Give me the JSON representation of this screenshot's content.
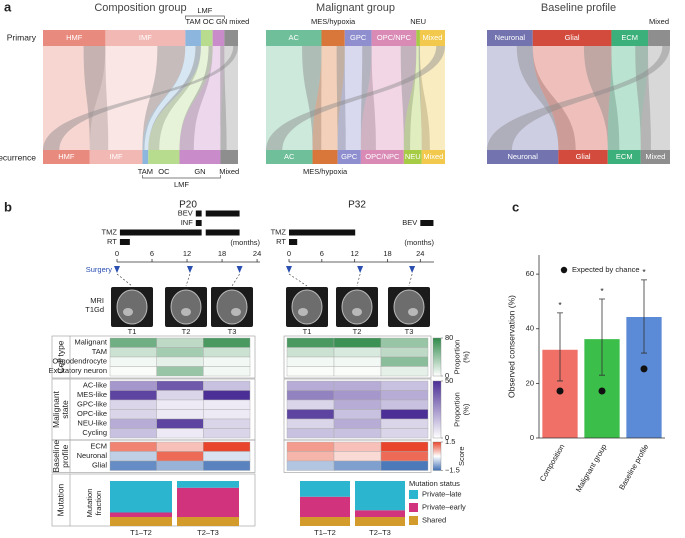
{
  "panel_a": {
    "label": "a"
  },
  "sankey": {
    "row_labels": {
      "primary": "Primary",
      "recurrence": "Recurrence"
    },
    "panels": [
      {
        "title": "Composition group",
        "primary": [
          {
            "name": "HMF",
            "color": "#e98a7e",
            "value": 32
          },
          {
            "name": "IMF",
            "color": "#f2b8b4",
            "value": 41
          },
          {
            "group": "LMF",
            "segments": [
              {
                "name": "TAM",
                "color": "#8db6de",
                "value": 8
              },
              {
                "name": "OC",
                "color": "#b7dc8e",
                "value": 6
              },
              {
                "name": "GN",
                "color": "#c98bc9",
                "value": 6
              }
            ]
          },
          {
            "name": "mixed",
            "color": "#8e8e8e",
            "value": 7
          }
        ],
        "recurrence": [
          {
            "name": "HMF",
            "color": "#e98a7e",
            "value": 24
          },
          {
            "name": "IMF",
            "color": "#f2b8b4",
            "value": 27
          },
          {
            "group": "LMF",
            "segments": [
              {
                "name": "TAM",
                "color": "#8db6de",
                "value": 3
              },
              {
                "name": "OC",
                "color": "#b7dc8e",
                "value": 16
              },
              {
                "name": "GN",
                "color": "#c98bc9",
                "value": 21
              }
            ]
          },
          {
            "name": "Mixed",
            "color": "#8e8e8e",
            "value": 9
          }
        ]
      },
      {
        "title": "Malignant group",
        "primary": [
          {
            "name": "AC",
            "color": "#6fc09a",
            "value": 31
          },
          {
            "name": "MES/hypoxia",
            "color": "#d9773a",
            "value": 13
          },
          {
            "name": "GPC",
            "color": "#8f8fd0",
            "value": 15
          },
          {
            "name": "OPC/NPC",
            "color": "#d98ab5",
            "value": 25
          },
          {
            "name": "NEU",
            "color": "#a6cc46",
            "value": 2
          },
          {
            "name": "Mixed",
            "color": "#f2c94c",
            "value": 14
          }
        ],
        "recurrence": [
          {
            "name": "AC",
            "color": "#6fc09a",
            "value": 26
          },
          {
            "name": "MES/hypoxia",
            "color": "#d9773a",
            "value": 14
          },
          {
            "name": "GPC",
            "color": "#8f8fd0",
            "value": 13
          },
          {
            "name": "OPC/NPC",
            "color": "#d98ab5",
            "value": 24
          },
          {
            "name": "NEU",
            "color": "#a6cc46",
            "value": 10
          },
          {
            "name": "Mixed",
            "color": "#f2c94c",
            "value": 13
          }
        ]
      },
      {
        "title": "Baseline profile",
        "primary": [
          {
            "name": "Neuronal",
            "color": "#7373b0",
            "value": 25
          },
          {
            "name": "Glial",
            "color": "#d24b3c",
            "value": 43
          },
          {
            "name": "ECM",
            "color": "#3cb07a",
            "value": 20
          },
          {
            "name": "Mixed",
            "color": "#8e8e8e",
            "value": 12
          }
        ],
        "recurrence": [
          {
            "name": "Neuronal",
            "color": "#7373b0",
            "value": 39
          },
          {
            "name": "Glial",
            "color": "#d24b3c",
            "value": 27
          },
          {
            "name": "ECM",
            "color": "#3cb07a",
            "value": 18
          },
          {
            "name": "Mixed",
            "color": "#8e8e8e",
            "value": 16
          }
        ]
      }
    ]
  },
  "panel_b": {
    "label": "b",
    "timeline": {
      "ticks": [
        0,
        6,
        12,
        18,
        24
      ],
      "unit": "(months)",
      "surgery_label": "Surgery"
    },
    "mri_label": [
      "MRI",
      "T1Gd"
    ],
    "timepoints": [
      "T1",
      "T2",
      "T3"
    ],
    "heatmap_sections": [
      {
        "title": [
          "Cell type"
        ],
        "scale": {
          "title": [
            "Proportion",
            "(%)"
          ],
          "lim": [
            0,
            80
          ],
          "ticks": [
            0,
            80
          ],
          "colors": [
            "#ffffff",
            "#2f8a4a"
          ]
        },
        "rows": [
          "Malignant",
          "TAM",
          "Oligodendrocyte",
          "Excitatory neuron"
        ]
      },
      {
        "title": [
          "Malignant",
          "state"
        ],
        "scale": {
          "title": [
            "Proportion",
            "(%)"
          ],
          "lim": [
            0,
            50
          ],
          "ticks": [
            0,
            50
          ],
          "colors": [
            "#ffffff",
            "#4b2f96"
          ]
        },
        "rows": [
          "AC-like",
          "MES-like",
          "GPC-like",
          "OPC-like",
          "NEU-like",
          "Cycling"
        ]
      },
      {
        "title": [
          "Baseline",
          "profile"
        ],
        "scale": {
          "title": [
            "Score"
          ],
          "lim": [
            -1.5,
            1.5
          ],
          "ticks": [
            {
              "value": -1.5,
              "label": "−1.5"
            },
            1.5
          ],
          "colors": [
            "#3f6fb5",
            "#ffffff",
            "#e8452c"
          ]
        },
        "rows": [
          "ECM",
          "Neuronal",
          "Glial"
        ]
      }
    ],
    "mutation": {
      "title": [
        "Mutation"
      ],
      "axis_label": [
        "Mutation",
        "fraction"
      ],
      "legend_title": "Mutation status",
      "series": [
        {
          "name": "Private–late",
          "color": "#2bb5cf"
        },
        {
          "name": "Private–early",
          "color": "#d1337c"
        },
        {
          "name": "Shared",
          "color": "#d39b2c"
        }
      ]
    },
    "patients": [
      {
        "name": "P20",
        "xlim": [
          0,
          24.5
        ],
        "treatments": [
          {
            "name": "BEV",
            "intervals": [
              [
                13.5,
                14.5
              ],
              [
                15.2,
                21
              ]
            ]
          },
          {
            "name": "INF",
            "intervals": [
              [
                13.5,
                14.5
              ]
            ]
          },
          {
            "name": "TMZ",
            "intervals": [
              [
                0.5,
                13.6
              ],
              [
                13.5,
                14.5
              ],
              [
                15.2,
                21
              ]
            ]
          },
          {
            "name": "RT",
            "intervals": [
              [
                0.5,
                2.2
              ]
            ]
          }
        ],
        "surgeries": [
          0,
          12.5,
          21
        ],
        "heatmaps": [
          [
            [
              55,
              25,
              70
            ],
            [
              20,
              35,
              20
            ],
            [
              5,
              10,
              5
            ],
            [
              2,
              40,
              5
            ]
          ],
          [
            [
              25,
              40,
              15
            ],
            [
              45,
              10,
              50
            ],
            [
              10,
              5,
              5
            ],
            [
              10,
              5,
              5
            ],
            [
              20,
              45,
              10
            ],
            [
              15,
              5,
              10
            ]
          ],
          [
            [
              1.0,
              0.5,
              1.5
            ],
            [
              -0.5,
              1.2,
              -0.3
            ],
            [
              -1.2,
              -0.8,
              -1.3
            ]
          ]
        ],
        "mutation": [
          {
            "label": "T1–T2",
            "values": [
              0.7,
              0.1,
              0.2
            ]
          },
          {
            "label": "T2–T3",
            "values": [
              0.15,
              0.65,
              0.2
            ]
          }
        ]
      },
      {
        "name": "P32",
        "xlim": [
          0,
          26.5
        ],
        "treatments": [
          {
            "name": "BEV",
            "intervals": [
              [
                24,
                26.4
              ]
            ]
          },
          {
            "name": "TMZ",
            "intervals": [
              [
                0,
                12.1
              ]
            ]
          },
          {
            "name": "RT",
            "intervals": [
              [
                0,
                1.5
              ]
            ]
          }
        ],
        "surgeries": [
          0,
          13,
          22.5
        ],
        "heatmaps": [
          [
            [
              70,
              75,
              40
            ],
            [
              20,
              15,
              25
            ],
            [
              5,
              5,
              45
            ],
            [
              2,
              2,
              10
            ]
          ],
          [
            [
              20,
              20,
              15
            ],
            [
              30,
              25,
              20
            ],
            [
              10,
              20,
              15
            ],
            [
              45,
              15,
              50
            ],
            [
              10,
              20,
              10
            ],
            [
              15,
              15,
              10
            ]
          ],
          [
            [
              0.8,
              0.5,
              1.5
            ],
            [
              0.6,
              0.3,
              1.2
            ],
            [
              -0.6,
              -1.0,
              -1.4
            ]
          ]
        ],
        "mutation": [
          {
            "label": "T1–T2",
            "values": [
              0.35,
              0.45,
              0.2
            ]
          },
          {
            "label": "T2–T3",
            "values": [
              0.65,
              0.15,
              0.2
            ]
          }
        ]
      }
    ]
  },
  "panel_c": {
    "label": "c"
  },
  "chart_data": {
    "type": "bar",
    "ylabel": "Observed conservation (%)",
    "categories": [
      "Composition",
      "Malignant group",
      "Baseline profile"
    ],
    "values": [
      32.3,
      36.2,
      44.3
    ],
    "ci_low": [
      20.9,
      23,
      31.1
    ],
    "ci_high": [
      45.8,
      50.9,
      57.9
    ],
    "expected": [
      17.2,
      17.2,
      25.3
    ],
    "expected_label": "Expected by chance",
    "annotations": [
      "*",
      "*",
      "*"
    ],
    "colors": [
      "#f07068",
      "#3cbf4a",
      "#5b8bd6"
    ],
    "ylim": [
      0,
      67
    ],
    "yticks": [
      0,
      20,
      40,
      60
    ]
  }
}
